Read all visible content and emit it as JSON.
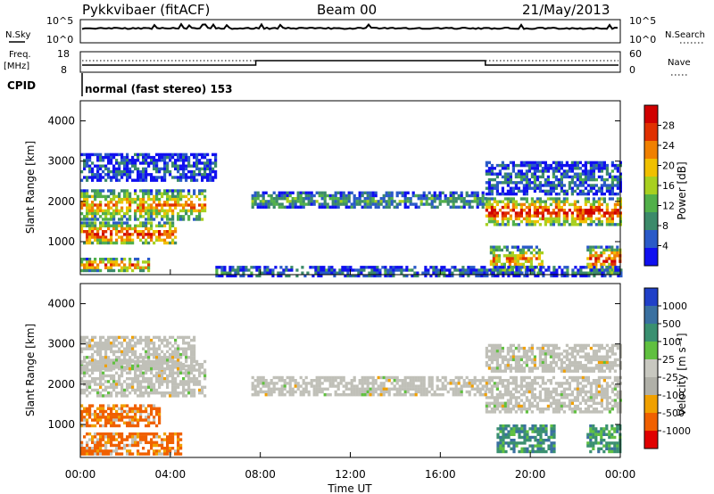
{
  "header": {
    "station": "Pykkvibaer (fitACF)",
    "beam": "Beam 00",
    "date": "21/May/2013"
  },
  "side_labels": {
    "nsky": "N.Sky",
    "nsearch": "N.Search",
    "freq": "Freq.",
    "freq_unit": "[MHz]",
    "nave": "Nave",
    "cpid": "CPID"
  },
  "small_panels": {
    "noise_ticks_left": [
      "10^5",
      "10^0"
    ],
    "noise_ticks_right": [
      "10^5",
      "10^0"
    ],
    "freq_ticks_left": [
      "18",
      "8"
    ],
    "freq_ticks_right": [
      "60",
      "0"
    ],
    "cpid_text": "normal (fast stereo) 153"
  },
  "colors": {
    "power_scale": [
      "#1010f0",
      "#2a5ac8",
      "#3c8a6a",
      "#52b04a",
      "#a8d020",
      "#f0c000",
      "#f08000",
      "#e03000",
      "#d00000"
    ],
    "velocity_scale": [
      "#2040c8",
      "#3a70a0",
      "#3a9070",
      "#60c040",
      "#c8c8c0",
      "#b0b0a8",
      "#f0a000",
      "#f06000",
      "#e00000"
    ],
    "ground_scatter": "#c0c0b8"
  },
  "chart_data": [
    {
      "type": "heatmap",
      "name": "power",
      "ylabel": "Slant Range [km]",
      "colorbar_label": "Power [dB]",
      "colorbar_ticks": [
        "28",
        "24",
        "20",
        "16",
        "12",
        "8",
        "4"
      ],
      "yticks": [
        "4000",
        "3000",
        "2000",
        "1000"
      ],
      "ylim": [
        180,
        4500
      ],
      "xlim": [
        0,
        24
      ],
      "bands": [
        {
          "t0": 0.0,
          "t1": 5.5,
          "r0": 1550,
          "r1": 2300,
          "level": 0.6
        },
        {
          "t0": 0.0,
          "t1": 4.2,
          "r0": 950,
          "r1": 1500,
          "level": 0.75
        },
        {
          "t0": 0.0,
          "t1": 3.0,
          "r0": 300,
          "r1": 600,
          "level": 0.7
        },
        {
          "t0": 0.0,
          "t1": 6.0,
          "r0": 2500,
          "r1": 3200,
          "level": 0.15
        },
        {
          "t0": 7.6,
          "t1": 18.0,
          "r0": 1850,
          "r1": 2250,
          "level": 0.3
        },
        {
          "t0": 18.0,
          "t1": 24.0,
          "r0": 1450,
          "r1": 2100,
          "level": 0.8
        },
        {
          "t0": 18.0,
          "t1": 24.0,
          "r0": 2200,
          "r1": 3000,
          "level": 0.2
        },
        {
          "t0": 18.2,
          "t1": 20.5,
          "r0": 250,
          "r1": 900,
          "level": 0.6
        },
        {
          "t0": 22.5,
          "t1": 24.0,
          "r0": 250,
          "r1": 900,
          "level": 0.7
        },
        {
          "t0": 6.0,
          "t1": 24.0,
          "r0": 180,
          "r1": 400,
          "level": 0.2
        }
      ]
    },
    {
      "type": "heatmap",
      "name": "velocity",
      "ylabel": "Slant Range [km]",
      "xlabel": "Time UT",
      "colorbar_label": "Velocity [m s⁻¹]",
      "colorbar_ticks": [
        "1000",
        "500",
        "100",
        "25",
        "-25",
        "-100",
        "-500",
        "-1000"
      ],
      "yticks": [
        "4000",
        "3000",
        "2000",
        "1000"
      ],
      "xticks": [
        "00:00",
        "04:00",
        "08:00",
        "12:00",
        "16:00",
        "20:00",
        "00:00"
      ],
      "ylim": [
        180,
        4500
      ],
      "xlim": [
        0,
        24
      ],
      "bands": [
        {
          "t0": 0.0,
          "t1": 5.5,
          "r0": 1700,
          "r1": 2600,
          "kind": "ground"
        },
        {
          "t0": 0.0,
          "t1": 5.0,
          "r0": 2400,
          "r1": 3200,
          "kind": "ground"
        },
        {
          "t0": 0.0,
          "t1": 3.5,
          "r0": 950,
          "r1": 1500,
          "kind": "neg"
        },
        {
          "t0": 0.0,
          "t1": 4.5,
          "r0": 300,
          "r1": 800,
          "kind": "neg"
        },
        {
          "t0": 7.6,
          "t1": 18.0,
          "r0": 1750,
          "r1": 2200,
          "kind": "ground"
        },
        {
          "t0": 18.0,
          "t1": 24.0,
          "r0": 1300,
          "r1": 2200,
          "kind": "ground"
        },
        {
          "t0": 18.0,
          "t1": 24.0,
          "r0": 2300,
          "r1": 3000,
          "kind": "ground"
        },
        {
          "t0": 18.5,
          "t1": 21.0,
          "r0": 300,
          "r1": 1000,
          "kind": "pos"
        },
        {
          "t0": 22.5,
          "t1": 24.0,
          "r0": 300,
          "r1": 1000,
          "kind": "pos"
        }
      ]
    }
  ]
}
